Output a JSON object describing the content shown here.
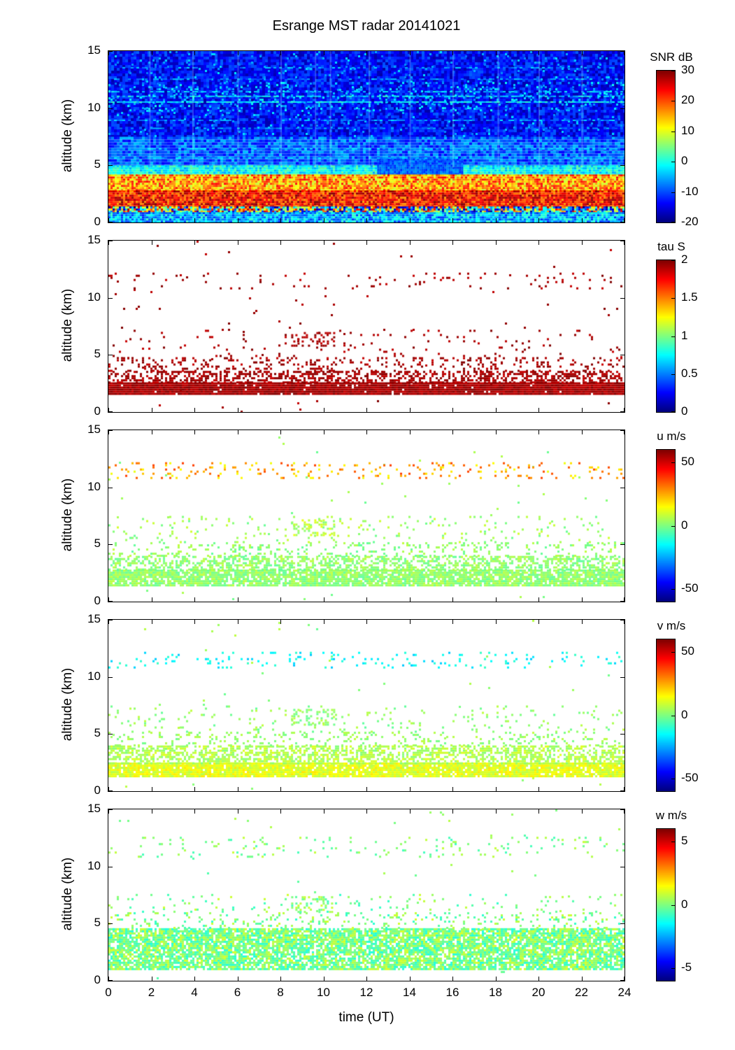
{
  "title": "Esrange MST radar 20141021",
  "xlabel": "time (UT)",
  "ylabel": "altitude (km)",
  "xlim": [
    0,
    24
  ],
  "ylim": [
    0,
    15
  ],
  "x_ticks": [
    0,
    2,
    4,
    6,
    8,
    10,
    12,
    14,
    16,
    18,
    20,
    22,
    24
  ],
  "y_ticks": [
    0,
    5,
    10,
    15
  ],
  "chart_data": [
    {
      "type": "heatmap",
      "name": "SNR",
      "colorbar_label": "SNR dB",
      "clim": [
        -20,
        30
      ],
      "colorbar_ticks": [
        30,
        20,
        10,
        0,
        -10,
        -20
      ],
      "units": "dB",
      "bands": [
        {
          "y": [
            7.5,
            15
          ],
          "v": [
            -18,
            -9
          ],
          "density": 1,
          "cell": 4
        },
        {
          "y": [
            5.0,
            7.5
          ],
          "v": [
            -14,
            -4
          ],
          "density": 1,
          "cell": 4
        },
        {
          "y": [
            9.8,
            12.3
          ],
          "v": [
            -8,
            0
          ],
          "density": 0.1,
          "cell": 3
        },
        {
          "y": [
            7.5,
            15
          ],
          "v": [
            -8,
            -2
          ],
          "density": 0.05,
          "cell": 3
        },
        {
          "y": [
            4.2,
            5.0
          ],
          "v": [
            -6,
            4
          ],
          "density": 1,
          "cell": 3
        },
        {
          "x": [
            12.5,
            16.5
          ],
          "y": [
            4.3,
            5.6
          ],
          "v": [
            -13,
            -6
          ],
          "density": 1,
          "cell": 3
        },
        {
          "y": [
            2.8,
            4.2
          ],
          "v": [
            8,
            24
          ],
          "density": 1,
          "cell": 3
        },
        {
          "y": [
            1.4,
            2.8
          ],
          "v": [
            16,
            30
          ],
          "density": 1,
          "cell": 3
        },
        {
          "y": [
            0.9,
            1.4
          ],
          "v": [
            -20,
            28
          ],
          "density": 1,
          "cell": 3
        },
        {
          "y": [
            0,
            0.9
          ],
          "v": [
            -12,
            2
          ],
          "density": 1,
          "cell": 3
        }
      ],
      "hlines": [
        {
          "y": 10.6,
          "v": [
            -5,
            2
          ],
          "density": 0.85,
          "h": 2
        },
        {
          "y": 11.1,
          "v": [
            -6,
            2
          ],
          "density": 0.6,
          "h": 2
        },
        {
          "y": 11.5,
          "v": [
            -8,
            0
          ],
          "density": 0.5,
          "h": 2
        },
        {
          "y": 12.6,
          "v": [
            -10,
            -2
          ],
          "density": 0.45,
          "h": 2
        },
        {
          "y": 13.6,
          "v": [
            -10,
            -2
          ],
          "density": 0.4,
          "h": 2
        },
        {
          "y": 9.0,
          "v": [
            -10,
            -2
          ],
          "density": 0.5,
          "h": 2
        },
        {
          "y": 8.3,
          "v": [
            -10,
            -3
          ],
          "density": 0.45,
          "h": 2
        },
        {
          "y": 6.5,
          "v": [
            -8,
            -1
          ],
          "density": 0.5,
          "h": 2
        },
        {
          "y": 5.7,
          "v": [
            -8,
            -1
          ],
          "density": 0.5,
          "h": 2
        }
      ],
      "vlines": [
        1.9,
        3.9,
        6.0,
        8.0,
        9.6,
        10.3,
        12.1,
        14.0,
        16.0,
        18.1,
        20.0,
        22.0
      ]
    },
    {
      "type": "heatmap",
      "name": "tau",
      "colorbar_label": "tau S",
      "clim": [
        0,
        2
      ],
      "colorbar_ticks": [
        2,
        1.5,
        1,
        0.5,
        0
      ],
      "units": "S",
      "bands": [
        {
          "y": [
            0,
            15
          ],
          "v": [
            1.85,
            2
          ],
          "density": 0.004,
          "cell": 3
        },
        {
          "y": [
            1.6,
            2.6
          ],
          "v": [
            1.85,
            2
          ],
          "density": 0.97,
          "cell": 3
        },
        {
          "y": [
            2.6,
            3.6
          ],
          "v": [
            1.85,
            2
          ],
          "density": 0.5,
          "cell": 3
        },
        {
          "y": [
            3.6,
            4.8
          ],
          "v": [
            1.85,
            2
          ],
          "density": 0.18,
          "cell": 3
        },
        {
          "y": [
            4.8,
            7.2
          ],
          "v": [
            1.85,
            2
          ],
          "density": 0.035,
          "cell": 3
        },
        {
          "x": [
            8.5,
            10.5
          ],
          "y": [
            5.8,
            7.0
          ],
          "v": [
            1.85,
            2
          ],
          "density": 0.25,
          "cell": 3
        },
        {
          "y": [
            10.8,
            12.2
          ],
          "v": [
            1.85,
            2
          ],
          "density": 0.05,
          "cell": 3
        }
      ]
    },
    {
      "type": "heatmap",
      "name": "u",
      "colorbar_label": "u m/s",
      "clim": [
        -60,
        60
      ],
      "colorbar_ticks": [
        50,
        0,
        -50
      ],
      "units": "m/s",
      "bands": [
        {
          "y": [
            0,
            15
          ],
          "v": [
            -3,
            6
          ],
          "density": 0.003,
          "cell": 3
        },
        {
          "y": [
            1.5,
            2.8
          ],
          "v": [
            -4,
            8
          ],
          "density": 0.85,
          "cell": 3
        },
        {
          "y": [
            2.8,
            4.0
          ],
          "v": [
            -4,
            8
          ],
          "density": 0.5,
          "cell": 3
        },
        {
          "y": [
            4.0,
            5.2
          ],
          "v": [
            -4,
            8
          ],
          "density": 0.15,
          "cell": 3
        },
        {
          "y": [
            5.2,
            7.5
          ],
          "v": [
            -3,
            10
          ],
          "density": 0.06,
          "cell": 3
        },
        {
          "x": [
            8.5,
            10.5
          ],
          "y": [
            5.8,
            7.2
          ],
          "v": [
            0,
            14
          ],
          "density": 0.3,
          "cell": 3
        },
        {
          "y": [
            10.8,
            12.2
          ],
          "v": [
            12,
            38
          ],
          "density": 0.1,
          "cell": 3
        }
      ]
    },
    {
      "type": "heatmap",
      "name": "v",
      "colorbar_label": "v m/s",
      "clim": [
        -60,
        60
      ],
      "colorbar_ticks": [
        50,
        0,
        -50
      ],
      "units": "m/s",
      "bands": [
        {
          "y": [
            0,
            15
          ],
          "v": [
            -3,
            8
          ],
          "density": 0.003,
          "cell": 3
        },
        {
          "y": [
            1.3,
            2.5
          ],
          "v": [
            6,
            18
          ],
          "density": 0.9,
          "cell": 3
        },
        {
          "y": [
            2.5,
            4.0
          ],
          "v": [
            0,
            12
          ],
          "density": 0.55,
          "cell": 3
        },
        {
          "y": [
            4.0,
            5.2
          ],
          "v": [
            -2,
            8
          ],
          "density": 0.15,
          "cell": 3
        },
        {
          "y": [
            5.2,
            7.5
          ],
          "v": [
            -4,
            8
          ],
          "density": 0.06,
          "cell": 3
        },
        {
          "x": [
            8.5,
            10.5
          ],
          "y": [
            5.8,
            7.2
          ],
          "v": [
            -4,
            8
          ],
          "density": 0.3,
          "cell": 3
        },
        {
          "y": [
            10.8,
            12.2
          ],
          "v": [
            -22,
            -8
          ],
          "density": 0.09,
          "cell": 3
        }
      ]
    },
    {
      "type": "heatmap",
      "name": "w",
      "colorbar_label": "w m/s",
      "clim": [
        -6,
        6
      ],
      "colorbar_ticks": [
        5,
        0,
        -5
      ],
      "units": "m/s",
      "bands": [
        {
          "y": [
            0,
            15
          ],
          "v": [
            -0.6,
            0.8
          ],
          "density": 0.004,
          "cell": 3
        },
        {
          "y": [
            1.0,
            4.6
          ],
          "v": [
            -1.2,
            1.1
          ],
          "density": 0.8,
          "cell": 3
        },
        {
          "y": [
            4.6,
            6.0
          ],
          "v": [
            -1.0,
            1.0
          ],
          "density": 0.12,
          "cell": 3
        },
        {
          "y": [
            6.0,
            7.6
          ],
          "v": [
            -1.0,
            1.0
          ],
          "density": 0.05,
          "cell": 3
        },
        {
          "x": [
            8.5,
            10.5
          ],
          "y": [
            6.0,
            7.4
          ],
          "v": [
            -0.8,
            1.0
          ],
          "density": 0.3,
          "cell": 3
        },
        {
          "y": [
            10.8,
            12.6
          ],
          "v": [
            -0.8,
            0.9
          ],
          "density": 0.07,
          "cell": 3
        }
      ]
    }
  ]
}
